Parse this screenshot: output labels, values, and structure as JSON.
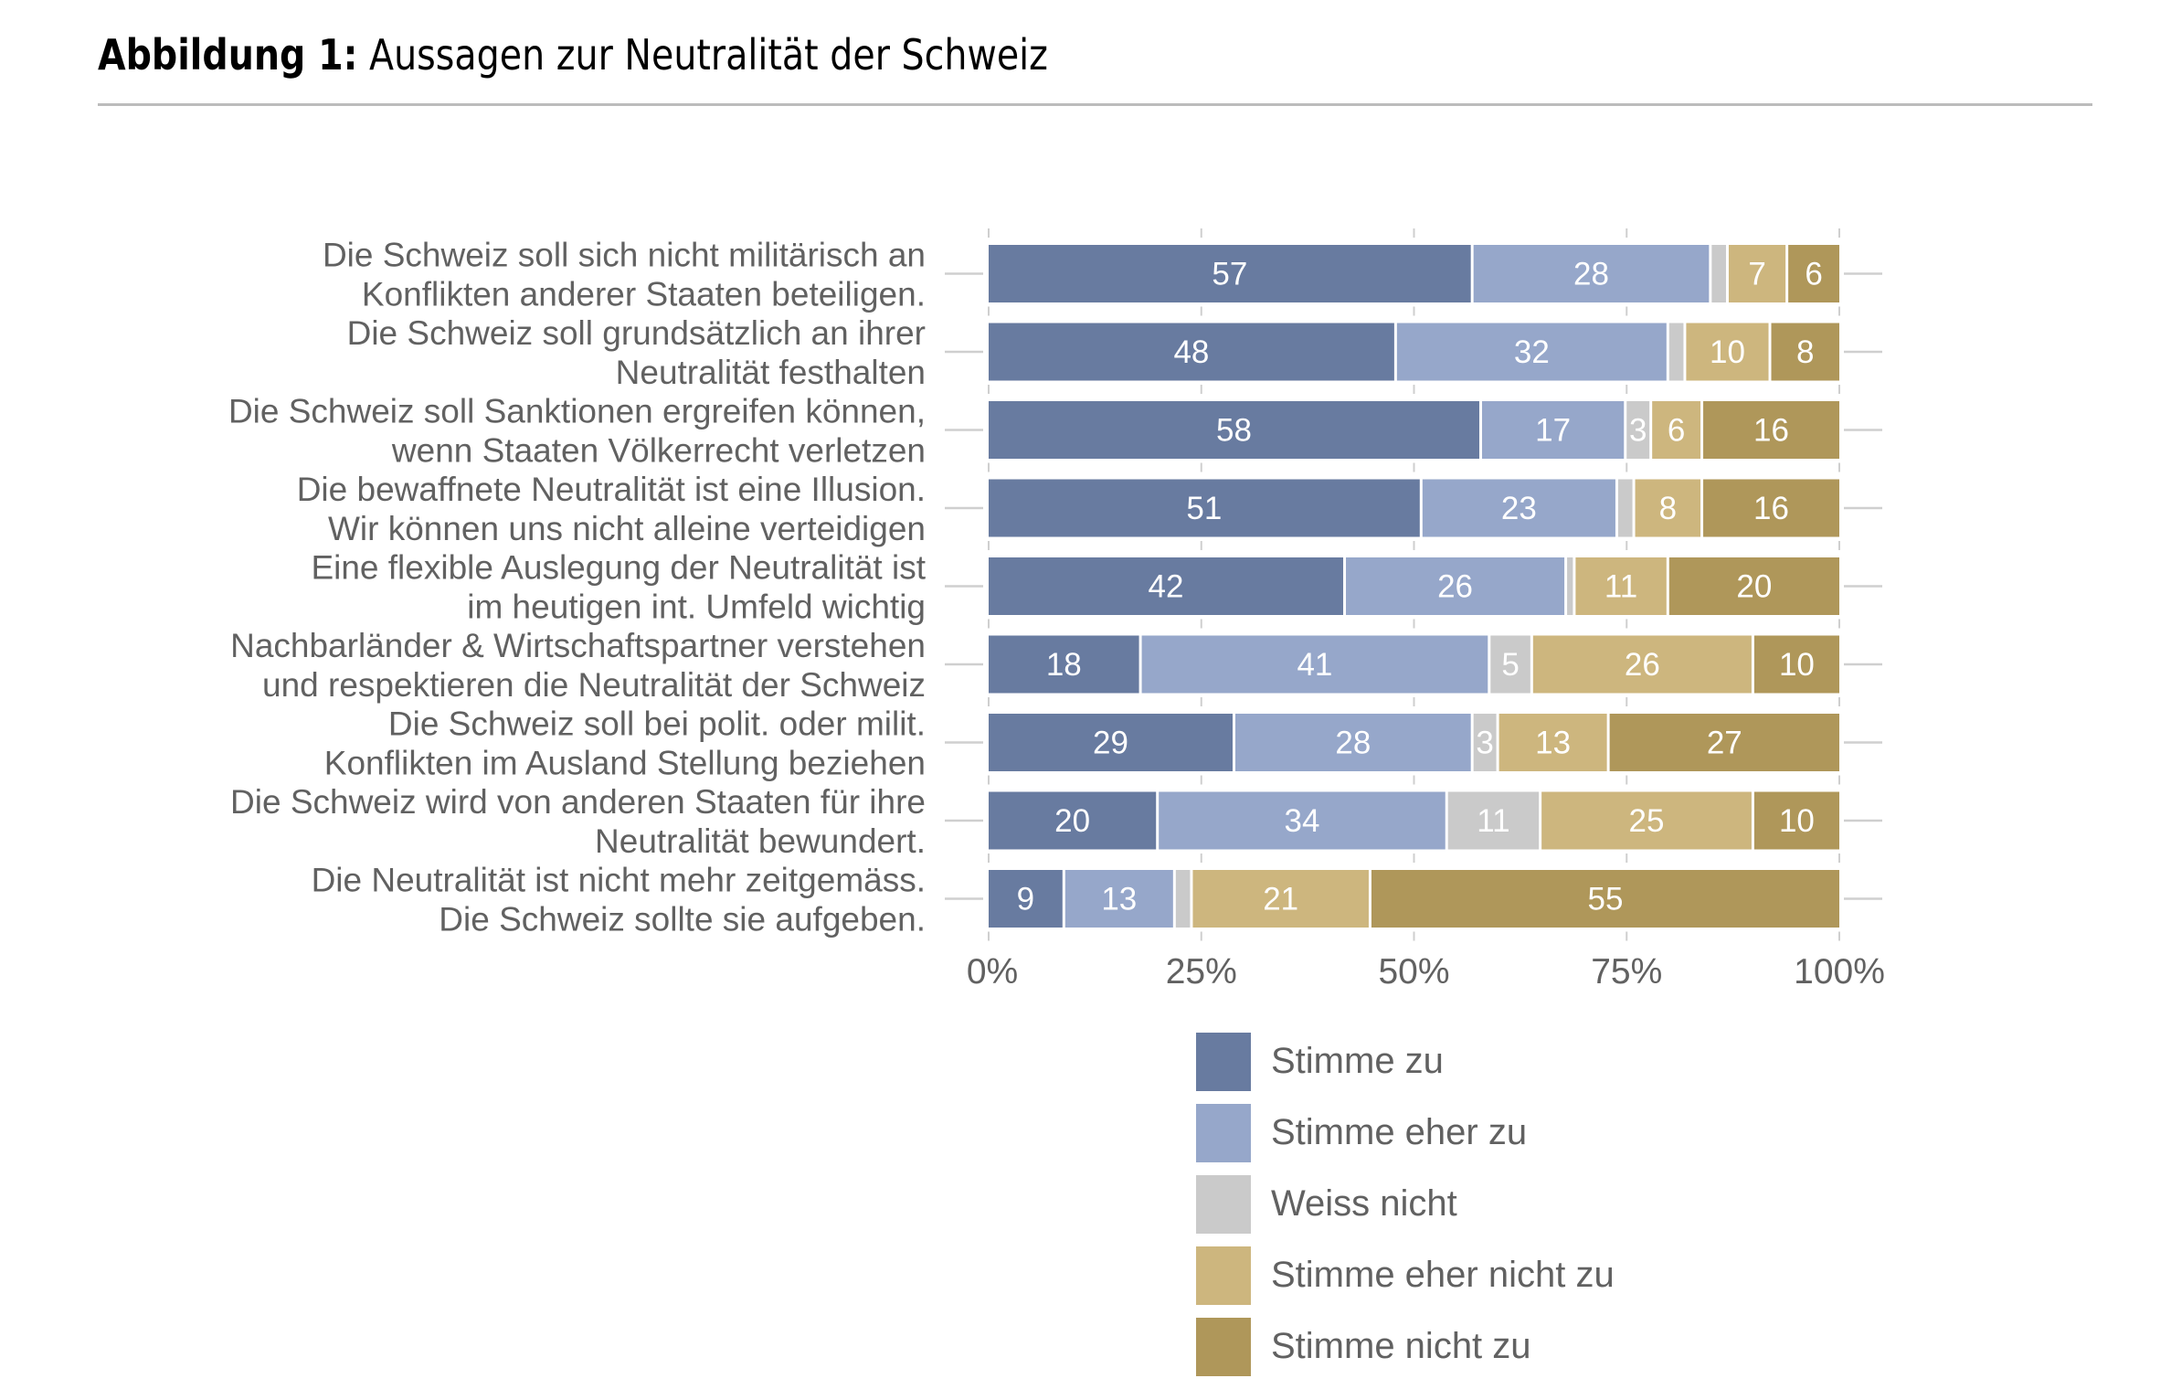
{
  "figure": {
    "title_prefix": "Abbildung 1:",
    "title_text": "Aussagen zur Neutralität der Schweiz"
  },
  "colors": {
    "stimme_zu": "#687BA0",
    "stimme_eher_zu": "#96A7CA",
    "weiss_nicht": "#CACACA",
    "stimme_eher_nicht_zu": "#CDB67E",
    "stimme_nicht_zu": "#AF975A",
    "gridline": "#CFCFCF",
    "text": "#616161"
  },
  "chart_data": {
    "type": "bar",
    "orientation": "horizontal",
    "stacked": true,
    "title": "Abbildung 1: Aussagen zur Neutralität der Schweiz",
    "xlabel": "",
    "ylabel": "",
    "xlim": [
      0,
      100
    ],
    "x_ticks": [
      0,
      25,
      50,
      75,
      100
    ],
    "x_tick_labels": [
      "0%",
      "25%",
      "50%",
      "75%",
      "100%"
    ],
    "grid": false,
    "legend_position": "bottom",
    "categories": [
      [
        "Die Schweiz soll sich nicht militärisch an",
        "Konflikten anderer Staaten beteiligen."
      ],
      [
        "Die Schweiz soll grundsätzlich an ihrer",
        "Neutralität festhalten"
      ],
      [
        "Die Schweiz soll Sanktionen ergreifen können,",
        "wenn Staaten Völkerrecht verletzen"
      ],
      [
        "Die bewaffnete Neutralität ist eine Illusion.",
        "Wir können uns nicht alleine verteidigen"
      ],
      [
        "Eine flexible Auslegung der Neutralität ist",
        "im heutigen int. Umfeld wichtig"
      ],
      [
        "Nachbarländer & Wirtschaftspartner verstehen",
        "und respektieren die Neutralität der Schweiz"
      ],
      [
        "Die Schweiz soll bei polit. oder milit.",
        "Konflikten im Ausland Stellung beziehen"
      ],
      [
        "Die Schweiz wird von anderen Staaten für ihre",
        "Neutralität bewundert."
      ],
      [
        "Die Neutralität ist nicht mehr zeitgemäss.",
        "Die Schweiz sollte sie aufgeben."
      ]
    ],
    "series": [
      {
        "name": "Stimme zu",
        "color_key": "stimme_zu",
        "values": [
          57,
          48,
          58,
          51,
          42,
          18,
          29,
          20,
          9
        ],
        "labels_shown": [
          true,
          true,
          true,
          true,
          true,
          true,
          true,
          true,
          true
        ]
      },
      {
        "name": "Stimme eher zu",
        "color_key": "stimme_eher_zu",
        "values": [
          28,
          32,
          17,
          23,
          26,
          41,
          28,
          34,
          13
        ],
        "labels_shown": [
          true,
          true,
          true,
          true,
          true,
          true,
          true,
          true,
          true
        ]
      },
      {
        "name": "Weiss nicht",
        "color_key": "weiss_nicht",
        "values": [
          2,
          2,
          3,
          2,
          1,
          5,
          3,
          11,
          2
        ],
        "labels_shown": [
          false,
          false,
          true,
          false,
          false,
          true,
          true,
          true,
          false
        ]
      },
      {
        "name": "Stimme eher nicht zu",
        "color_key": "stimme_eher_nicht_zu",
        "values": [
          7,
          10,
          6,
          8,
          11,
          26,
          13,
          25,
          21
        ],
        "labels_shown": [
          true,
          true,
          true,
          true,
          true,
          true,
          true,
          true,
          true
        ]
      },
      {
        "name": "Stimme nicht zu",
        "color_key": "stimme_nicht_zu",
        "values": [
          6,
          8,
          16,
          16,
          20,
          10,
          27,
          10,
          55
        ],
        "labels_shown": [
          true,
          true,
          true,
          true,
          true,
          true,
          true,
          true,
          true
        ]
      }
    ]
  },
  "legend": {
    "items": [
      {
        "label": "Stimme zu",
        "color_key": "stimme_zu"
      },
      {
        "label": "Stimme eher zu",
        "color_key": "stimme_eher_zu"
      },
      {
        "label": "Weiss nicht",
        "color_key": "weiss_nicht"
      },
      {
        "label": "Stimme eher nicht zu",
        "color_key": "stimme_eher_nicht_zu"
      },
      {
        "label": "Stimme nicht zu",
        "color_key": "stimme_nicht_zu"
      }
    ]
  }
}
